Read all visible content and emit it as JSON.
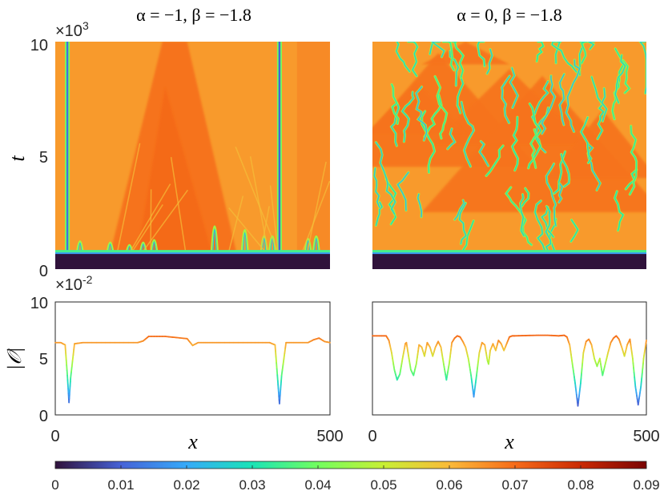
{
  "chart_data": [
    {
      "type": "heatmap",
      "panel": "top-left",
      "title": "α = −1, β = −1.8",
      "xlabel": "",
      "ylabel": "t",
      "ylabel_italic": true,
      "x_range": [
        0,
        500
      ],
      "y_range": [
        0,
        10000
      ],
      "y_ticks": [
        "0",
        "5",
        "10"
      ],
      "y_multiplier": "×10",
      "y_multiplier_exp": "3",
      "value_range": [
        0,
        0.09
      ],
      "description_values": {
        "background_level": 0.064,
        "transient_end_t": 700
      }
    },
    {
      "type": "heatmap",
      "panel": "top-right",
      "title": "α = 0, β = −1.8",
      "xlabel": "",
      "ylabel": "",
      "x_range": [
        0,
        500
      ],
      "y_range": [
        0,
        10000
      ],
      "value_range": [
        0,
        0.09
      ]
    },
    {
      "type": "line",
      "panel": "bottom-left",
      "xlabel": "x",
      "ylabel": "|𝒪|",
      "x_range": [
        0,
        500
      ],
      "y_range": [
        0,
        0.1
      ],
      "x_ticks": [
        "0",
        "500"
      ],
      "y_ticks": [
        "0",
        "5",
        "10"
      ],
      "y_multiplier": "×10",
      "y_multiplier_exp": "-2",
      "x": [
        0,
        10,
        18,
        22,
        25,
        28,
        35,
        50,
        100,
        150,
        160,
        170,
        200,
        240,
        250,
        260,
        280,
        300,
        350,
        390,
        400,
        405,
        408,
        412,
        420,
        440,
        460,
        470,
        480,
        490,
        500
      ],
      "y": [
        0.064,
        0.064,
        0.062,
        0.035,
        0.011,
        0.033,
        0.063,
        0.064,
        0.064,
        0.064,
        0.0655,
        0.0695,
        0.0695,
        0.0675,
        0.0615,
        0.064,
        0.064,
        0.064,
        0.064,
        0.064,
        0.062,
        0.03,
        0.01,
        0.035,
        0.064,
        0.064,
        0.064,
        0.0665,
        0.068,
        0.065,
        0.064
      ]
    },
    {
      "type": "line",
      "panel": "bottom-right",
      "xlabel": "x",
      "ylabel": "",
      "x_range": [
        0,
        500
      ],
      "y_range": [
        0,
        0.1
      ],
      "x_ticks": [
        "0",
        "500"
      ],
      "x": [
        0,
        25,
        30,
        35,
        40,
        45,
        50,
        55,
        60,
        62,
        65,
        70,
        75,
        80,
        85,
        90,
        95,
        100,
        105,
        110,
        115,
        120,
        125,
        130,
        135,
        140,
        145,
        150,
        155,
        160,
        165,
        170,
        175,
        180,
        185,
        190,
        195,
        200,
        205,
        210,
        212,
        215,
        220,
        225,
        230,
        235,
        240,
        245,
        250,
        255,
        260,
        300,
        320,
        340,
        350,
        355,
        360,
        365,
        370,
        375,
        380,
        385,
        390,
        395,
        400,
        405,
        410,
        415,
        420,
        425,
        430,
        435,
        440,
        445,
        450,
        455,
        460,
        465,
        470,
        475,
        480,
        485,
        490,
        495,
        500
      ],
      "y": [
        0.07,
        0.07,
        0.066,
        0.055,
        0.04,
        0.031,
        0.036,
        0.05,
        0.063,
        0.064,
        0.055,
        0.04,
        0.035,
        0.045,
        0.062,
        0.06,
        0.052,
        0.064,
        0.06,
        0.052,
        0.06,
        0.065,
        0.06,
        0.045,
        0.031,
        0.045,
        0.064,
        0.068,
        0.07,
        0.069,
        0.065,
        0.06,
        0.05,
        0.035,
        0.016,
        0.035,
        0.055,
        0.064,
        0.062,
        0.048,
        0.045,
        0.057,
        0.063,
        0.057,
        0.066,
        0.063,
        0.057,
        0.063,
        0.069,
        0.07,
        0.07,
        0.0705,
        0.0705,
        0.07,
        0.0705,
        0.069,
        0.062,
        0.045,
        0.028,
        0.008,
        0.028,
        0.055,
        0.065,
        0.067,
        0.062,
        0.05,
        0.043,
        0.05,
        0.035,
        0.045,
        0.055,
        0.064,
        0.068,
        0.07,
        0.067,
        0.06,
        0.052,
        0.062,
        0.067,
        0.05,
        0.025,
        0.009,
        0.025,
        0.05,
        0.066
      ]
    }
  ],
  "colorbar": {
    "min": 0,
    "max": 0.09,
    "ticks": [
      "0",
      "0.01",
      "0.02",
      "0.03",
      "0.04",
      "0.05",
      "0.06",
      "0.07",
      "0.08",
      "0.09"
    ],
    "tick_values": [
      0,
      0.01,
      0.02,
      0.03,
      0.04,
      0.05,
      0.06,
      0.07,
      0.08,
      0.09
    ],
    "colormap": "turbo",
    "stops": [
      "#30123b",
      "#4662d7",
      "#36aaf9",
      "#1ae4b6",
      "#72fe5e",
      "#c8ef34",
      "#faba39",
      "#f66b19",
      "#ca2a04",
      "#7a0403"
    ]
  }
}
